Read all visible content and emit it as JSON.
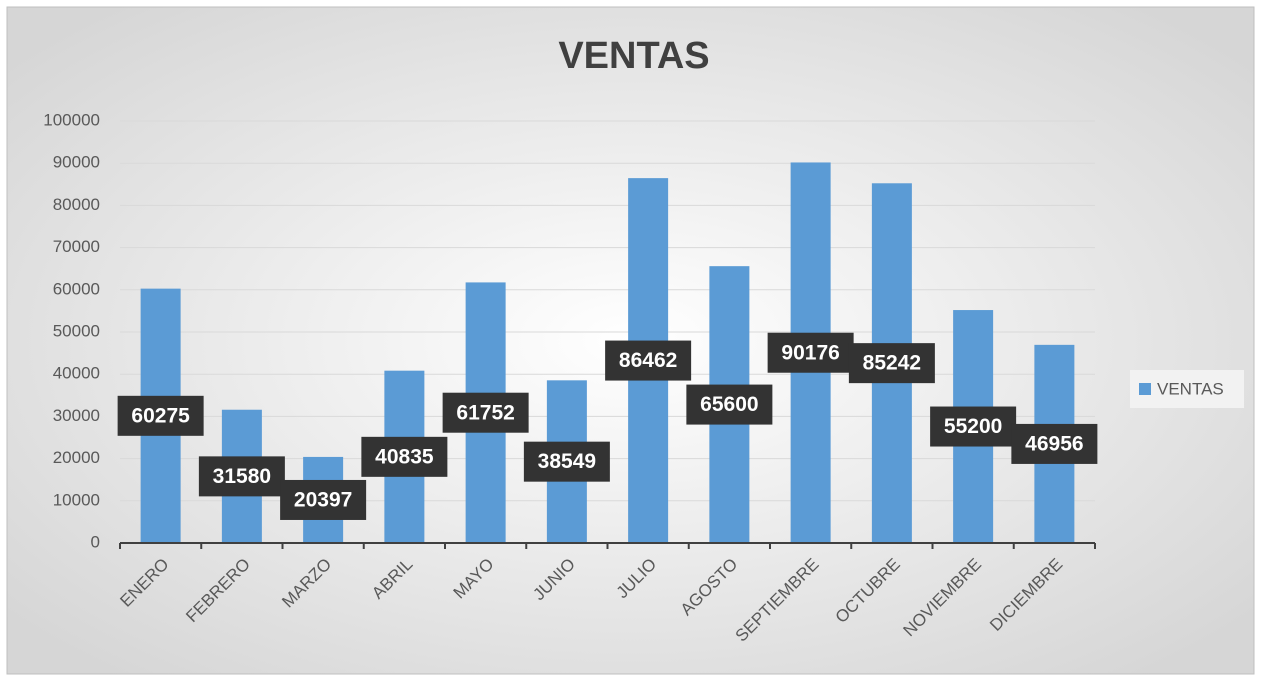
{
  "chart_data": {
    "type": "bar",
    "title": "VENTAS",
    "categories": [
      "ENERO",
      "FEBRERO",
      "MARZO",
      "ABRIL",
      "MAYO",
      "JUNIO",
      "JULIO",
      "AGOSTO",
      "SEPTIEMBRE",
      "OCTUBRE",
      "NOVIEMBRE",
      "DICIEMBRE"
    ],
    "series": [
      {
        "name": "VENTAS",
        "color": "#5b9bd5",
        "values": [
          60275,
          31580,
          20397,
          40835,
          61752,
          38549,
          86462,
          65600,
          90176,
          85242,
          55200,
          46956
        ]
      }
    ],
    "ylim": [
      0,
      100000
    ],
    "yticks": [
      0,
      10000,
      20000,
      30000,
      40000,
      50000,
      60000,
      70000,
      80000,
      90000,
      100000
    ],
    "grid": true,
    "legend": "right"
  }
}
